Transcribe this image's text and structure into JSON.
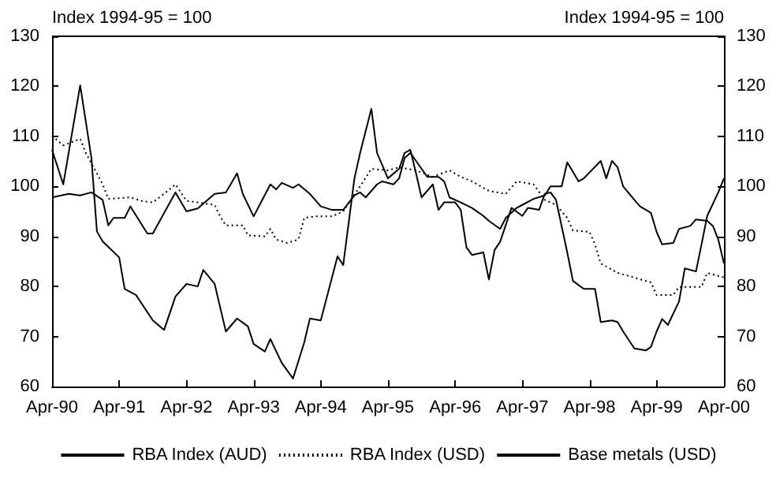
{
  "chart_data": {
    "type": "line",
    "ylabel": "Index 1994-95 = 100",
    "y2label": "Index 1994-95 = 100",
    "xlim": [
      "1990-04",
      "2000-04"
    ],
    "xticks": [
      {
        "value": "1990-04",
        "label": "Apr-90"
      },
      {
        "value": "1991-04",
        "label": "Apr-91"
      },
      {
        "value": "1992-04",
        "label": "Apr-92"
      },
      {
        "value": "1993-04",
        "label": "Apr-93"
      },
      {
        "value": "1994-04",
        "label": "Apr-94"
      },
      {
        "value": "1995-04",
        "label": "Apr-95"
      },
      {
        "value": "1996-04",
        "label": "Apr-96"
      },
      {
        "value": "1997-04",
        "label": "Apr-97"
      },
      {
        "value": "1998-04",
        "label": "Apr-98"
      },
      {
        "value": "1999-04",
        "label": "Apr-99"
      },
      {
        "value": "2000-04",
        "label": "Apr-00"
      }
    ],
    "ylim": [
      60,
      130
    ],
    "yticks": [
      60,
      70,
      80,
      90,
      100,
      110,
      120,
      130
    ],
    "y2lim": [
      60,
      130
    ],
    "y2ticks": [
      60,
      70,
      80,
      90,
      100,
      110,
      120,
      130
    ],
    "grid": false,
    "legend": "bottom",
    "marker": "none",
    "series": [
      {
        "name": "RBA Index (AUD)",
        "color": "#000000",
        "line_style": "solid",
        "x": [
          "1990-04",
          "1990-07",
          "1990-09",
          "1990-11",
          "1991-01",
          "1991-02",
          "1991-03",
          "1991-05",
          "1991-06",
          "1991-09",
          "1991-10",
          "1992-02",
          "1992-04",
          "1992-06",
          "1992-09",
          "1992-11",
          "1993-01",
          "1993-02",
          "1993-04",
          "1993-07",
          "1993-08",
          "1993-09",
          "1993-11",
          "1993-12",
          "1994-02",
          "1994-04",
          "1994-06",
          "1994-08",
          "1994-10",
          "1994-11",
          "1994-12",
          "1995-02",
          "1995-03",
          "1995-05",
          "1995-06",
          "1995-07",
          "1995-08",
          "1995-11",
          "1996-01",
          "1996-02",
          "1996-03",
          "1996-05",
          "1996-07",
          "1996-09",
          "1996-10",
          "1996-12",
          "1997-01",
          "1997-03",
          "1997-04",
          "1997-06",
          "1997-08",
          "1997-09",
          "1997-11",
          "1997-12",
          "1998-02",
          "1998-03",
          "1998-06",
          "1998-07",
          "1998-08",
          "1998-09",
          "1998-10",
          "1998-12",
          "1999-01",
          "1999-03",
          "1999-04",
          "1999-05",
          "1999-07",
          "1999-08",
          "1999-10",
          "1999-11",
          "2000-01",
          "2000-02",
          "2000-03",
          "2000-04"
        ],
        "values": [
          97.8,
          98.5,
          98.2,
          98.8,
          97.3,
          92.2,
          93.7,
          93.7,
          96,
          90.6,
          90.6,
          98.8,
          95,
          95.6,
          98.5,
          98.8,
          102.6,
          98.5,
          94,
          100.4,
          99.4,
          100.7,
          99.7,
          100.4,
          98.5,
          96,
          95.3,
          95.3,
          98.2,
          98.8,
          97.8,
          100.4,
          101,
          100.4,
          101.6,
          105.7,
          106.7,
          101.9,
          101.9,
          101,
          97.8,
          96.8,
          95.7,
          94.1,
          93.1,
          91.5,
          93.7,
          95.7,
          96.3,
          97.5,
          98.2,
          100,
          100,
          104.8,
          101,
          101.6,
          105.1,
          101.6,
          105.1,
          103.8,
          100,
          97.3,
          96,
          94.7,
          90.9,
          88.4,
          88.7,
          91.5,
          92.1,
          93.4,
          93.1,
          92.1,
          89.4,
          84.6
        ]
      },
      {
        "name": "RBA Index (USD)",
        "color": "#000000",
        "line_style": "dotted",
        "x": [
          "1990-04",
          "1990-06",
          "1990-09",
          "1990-10",
          "1990-12",
          "1991-01",
          "1991-02",
          "1991-06",
          "1991-08",
          "1991-10",
          "1991-12",
          "1992-02",
          "1992-04",
          "1992-06",
          "1992-09",
          "1992-10",
          "1992-11",
          "1993-02",
          "1993-03",
          "1993-06",
          "1993-07",
          "1993-08",
          "1993-10",
          "1993-12",
          "1994-01",
          "1994-03",
          "1994-06",
          "1994-08",
          "1994-11",
          "1995-01",
          "1995-04",
          "1995-06",
          "1995-09",
          "1995-12",
          "1996-03",
          "1996-05",
          "1996-07",
          "1996-10",
          "1997-01",
          "1997-03",
          "1997-06",
          "1997-08",
          "1997-10",
          "1997-12",
          "1998-01",
          "1998-04",
          "1998-05",
          "1998-06",
          "1998-09",
          "1998-11",
          "1999-03",
          "1999-04",
          "1999-07",
          "1999-08",
          "1999-12",
          "2000-01",
          "2000-04"
        ],
        "values": [
          110.1,
          108.2,
          109.5,
          106.7,
          102.6,
          100.4,
          97.5,
          97.8,
          97.1,
          96.8,
          98.5,
          100.4,
          97.1,
          96.8,
          96.3,
          94,
          92.2,
          92.2,
          90.2,
          90,
          91.5,
          89.4,
          88.7,
          89.4,
          93.7,
          94,
          94,
          95,
          100,
          103.5,
          103.2,
          103.8,
          103.2,
          101.9,
          103.2,
          101.9,
          101,
          99.1,
          98.5,
          101,
          100.4,
          97.3,
          96.3,
          93.7,
          91.2,
          90.9,
          88.4,
          84.6,
          82.7,
          82.1,
          80.8,
          78.3,
          78.3,
          79.9,
          79.9,
          82.7,
          81.8
        ]
      },
      {
        "name": "Base metals (USD)",
        "color": "#000000",
        "line_style": "solid",
        "x": [
          "1990-04",
          "1990-06",
          "1990-09",
          "1990-11",
          "1990-12",
          "1991-01",
          "1991-04",
          "1991-05",
          "1991-07",
          "1991-10",
          "1991-12",
          "1992-02",
          "1992-04",
          "1992-06",
          "1992-07",
          "1992-09",
          "1992-11",
          "1993-01",
          "1993-03",
          "1993-04",
          "1993-06",
          "1993-07",
          "1993-09",
          "1993-11",
          "1994-01",
          "1994-02",
          "1994-04",
          "1994-07",
          "1994-08",
          "1994-10",
          "1994-11",
          "1995-01",
          "1995-02",
          "1995-04",
          "1995-06",
          "1995-07",
          "1995-08",
          "1995-09",
          "1995-10",
          "1995-12",
          "1996-01",
          "1996-02",
          "1996-04",
          "1996-05",
          "1996-06",
          "1996-07",
          "1996-09",
          "1996-10",
          "1996-11",
          "1996-12",
          "1997-02",
          "1997-04",
          "1997-05",
          "1997-07",
          "1997-08",
          "1997-09",
          "1997-10",
          "1997-12",
          "1998-01",
          "1998-03",
          "1998-05",
          "1998-06",
          "1998-08",
          "1998-09",
          "1998-10",
          "1998-12",
          "1999-02",
          "1999-03",
          "1999-04",
          "1999-05",
          "1999-06",
          "1999-08",
          "1999-09",
          "1999-11",
          "1999-12",
          "2000-01",
          "2000-03",
          "2000-04"
        ],
        "values": [
          107.3,
          100.4,
          120.2,
          105.7,
          91,
          89,
          85.8,
          79.5,
          78.3,
          73.2,
          71.3,
          78,
          80.5,
          80,
          83.3,
          80.5,
          71,
          73.6,
          72,
          68.5,
          67,
          69.5,
          64.7,
          61.6,
          68.8,
          73.6,
          73.2,
          86,
          84.3,
          101.6,
          106.7,
          115.5,
          106.7,
          101.6,
          103.5,
          106.7,
          107.3,
          102.6,
          97.8,
          100.4,
          95.3,
          96.8,
          96.8,
          95.3,
          87.8,
          86.3,
          86.8,
          81.4,
          87.3,
          88.9,
          95.7,
          94.1,
          95.7,
          95.3,
          98.5,
          98.8,
          97.3,
          86.8,
          81.1,
          79.5,
          79.5,
          72.9,
          73.2,
          72.9,
          71,
          67.6,
          67.2,
          67.9,
          71,
          73.5,
          72.3,
          77,
          83.6,
          83,
          88.4,
          94.1,
          98.8,
          101.6
        ]
      }
    ]
  }
}
